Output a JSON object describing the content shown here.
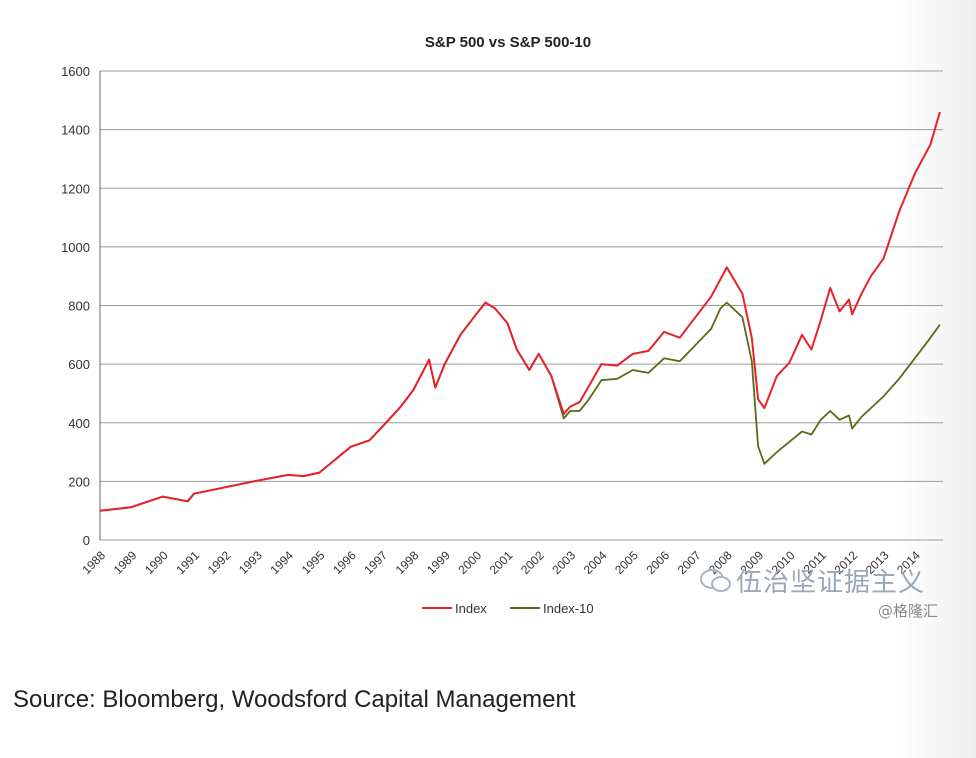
{
  "chart_data": {
    "type": "line",
    "title": "S&P 500 vs S&P 500-10",
    "xlabel": "",
    "ylabel": "",
    "ylim": [
      0,
      1600
    ],
    "yticks": [
      0,
      200,
      400,
      600,
      800,
      1000,
      1200,
      1400,
      1600
    ],
    "xlim": [
      1988,
      2014.9
    ],
    "xticks": [
      "1988",
      "1989",
      "1990",
      "1991",
      "1992",
      "1993",
      "1994",
      "1995",
      "1996",
      "1997",
      "1998",
      "1999",
      "2000",
      "2001",
      "2002",
      "2003",
      "2004",
      "2005",
      "2006",
      "2007",
      "2008",
      "2009",
      "2010",
      "2011",
      "2012",
      "2013",
      "2014"
    ],
    "grid": "horizontal",
    "legend_position": "bottom",
    "series": [
      {
        "name": "Index",
        "color": "#e8202a",
        "x": [
          1988.0,
          1989.0,
          1990.0,
          1990.8,
          1991.0,
          1992.0,
          1993.0,
          1994.0,
          1994.5,
          1995.0,
          1996.0,
          1996.6,
          1997.0,
          1997.6,
          1998.0,
          1998.5,
          1998.7,
          1999.0,
          1999.5,
          2000.0,
          2000.3,
          2000.6,
          2001.0,
          2001.3,
          2001.7,
          2002.0,
          2002.4,
          2002.8,
          2003.0,
          2003.3,
          2003.6,
          2004.0,
          2004.5,
          2005.0,
          2005.5,
          2006.0,
          2006.5,
          2007.0,
          2007.5,
          2007.8,
          2008.0,
          2008.5,
          2008.8,
          2009.0,
          2009.2,
          2009.6,
          2010.0,
          2010.4,
          2010.7,
          2011.0,
          2011.3,
          2011.6,
          2011.9,
          2012.0,
          2012.3,
          2012.6,
          2013.0,
          2013.5,
          2014.0,
          2014.5,
          2014.8
        ],
        "values": [
          100,
          112,
          148,
          132,
          158,
          180,
          202,
          222,
          218,
          230,
          318,
          340,
          385,
          455,
          512,
          615,
          520,
          600,
          700,
          770,
          810,
          790,
          740,
          650,
          580,
          635,
          560,
          430,
          455,
          470,
          525,
          600,
          595,
          635,
          645,
          710,
          690,
          760,
          830,
          890,
          930,
          840,
          690,
          480,
          450,
          560,
          605,
          700,
          650,
          750,
          860,
          780,
          820,
          770,
          840,
          900,
          960,
          1120,
          1250,
          1350,
          1460
        ]
      },
      {
        "name": "Index-10",
        "color": "#5a6b14",
        "x": [
          1988.0,
          1989.0,
          1990.0,
          1990.8,
          1991.0,
          1992.0,
          1993.0,
          1994.0,
          1994.5,
          1995.0,
          1996.0,
          1996.6,
          1997.0,
          1997.6,
          1998.0,
          1998.5,
          1998.7,
          1999.0,
          1999.5,
          2000.0,
          2000.3,
          2000.6,
          2001.0,
          2001.3,
          2001.7,
          2002.0,
          2002.4,
          2002.8,
          2003.0,
          2003.3,
          2003.6,
          2004.0,
          2004.5,
          2005.0,
          2005.5,
          2006.0,
          2006.5,
          2007.0,
          2007.5,
          2007.8,
          2008.0,
          2008.5,
          2008.8,
          2009.0,
          2009.2,
          2009.6,
          2010.0,
          2010.4,
          2010.7,
          2011.0,
          2011.3,
          2011.6,
          2011.9,
          2012.0,
          2012.3,
          2012.6,
          2013.0,
          2013.5,
          2014.0,
          2014.5,
          2014.8
        ],
        "values": [
          100,
          112,
          148,
          132,
          158,
          180,
          202,
          222,
          218,
          230,
          318,
          340,
          385,
          455,
          512,
          615,
          520,
          600,
          700,
          770,
          810,
          790,
          740,
          650,
          580,
          635,
          560,
          415,
          440,
          440,
          480,
          545,
          550,
          580,
          570,
          620,
          610,
          665,
          720,
          790,
          810,
          760,
          610,
          320,
          260,
          300,
          335,
          370,
          360,
          410,
          440,
          410,
          425,
          380,
          420,
          450,
          490,
          550,
          620,
          690,
          735
        ]
      }
    ]
  },
  "source_text": "Source: Bloomberg, Woodsford Capital Management",
  "watermark": {
    "text": "伍治坚证据主义",
    "sub": "@格隆汇"
  }
}
